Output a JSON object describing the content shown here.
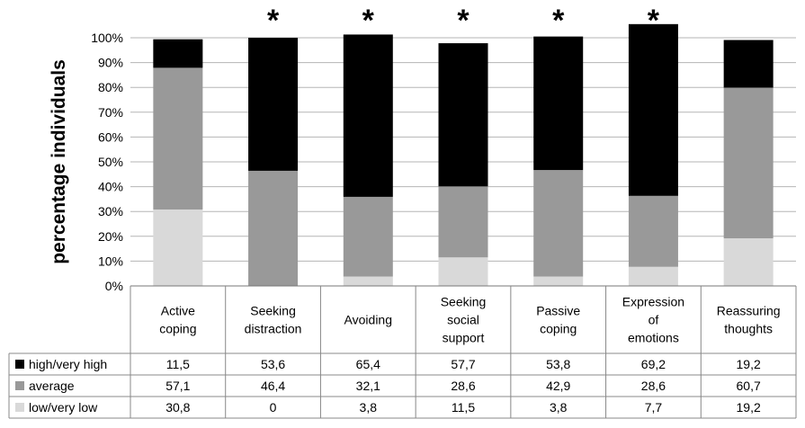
{
  "chart_data": {
    "type": "bar",
    "stacked": true,
    "normalized": true,
    "ylabel": "percentage individuals",
    "ylim": [
      0,
      100
    ],
    "yticks": [
      "0%",
      "10%",
      "20%",
      "30%",
      "40%",
      "50%",
      "60%",
      "70%",
      "80%",
      "90%",
      "100%"
    ],
    "categories": [
      [
        "Active",
        "coping"
      ],
      [
        "Seeking",
        "distraction"
      ],
      [
        "Avoiding"
      ],
      [
        "Seeking",
        "social",
        "support"
      ],
      [
        "Passive",
        "coping"
      ],
      [
        "Expression",
        "of",
        "emotions"
      ],
      [
        "Reassuring",
        "thoughts"
      ]
    ],
    "series": [
      {
        "name": "low/very low",
        "color": "#d9d9d9",
        "values": [
          30.8,
          0,
          3.8,
          11.5,
          3.8,
          7.7,
          19.2
        ],
        "labels": [
          "30,8",
          "0",
          "3,8",
          "11,5",
          "3,8",
          "7,7",
          "19,2"
        ]
      },
      {
        "name": "average",
        "color": "#999999",
        "values": [
          57.1,
          46.4,
          32.1,
          28.6,
          42.9,
          28.6,
          60.7
        ],
        "labels": [
          "57,1",
          "46,4",
          "32,1",
          "28,6",
          "42,9",
          "28,6",
          "60,7"
        ]
      },
      {
        "name": "high/very high",
        "color": "#000000",
        "values": [
          11.5,
          53.6,
          65.4,
          57.7,
          53.8,
          69.2,
          19.2
        ],
        "labels": [
          "11,5",
          "53,6",
          "65,4",
          "57,7",
          "53,8",
          "69,2",
          "19,2"
        ]
      }
    ],
    "table_row_order": [
      "high/very high",
      "average",
      "low/very low"
    ],
    "significance_marker": "*",
    "significant": [
      false,
      true,
      true,
      true,
      true,
      true,
      false
    ],
    "grid": true,
    "legend": "data-table"
  }
}
